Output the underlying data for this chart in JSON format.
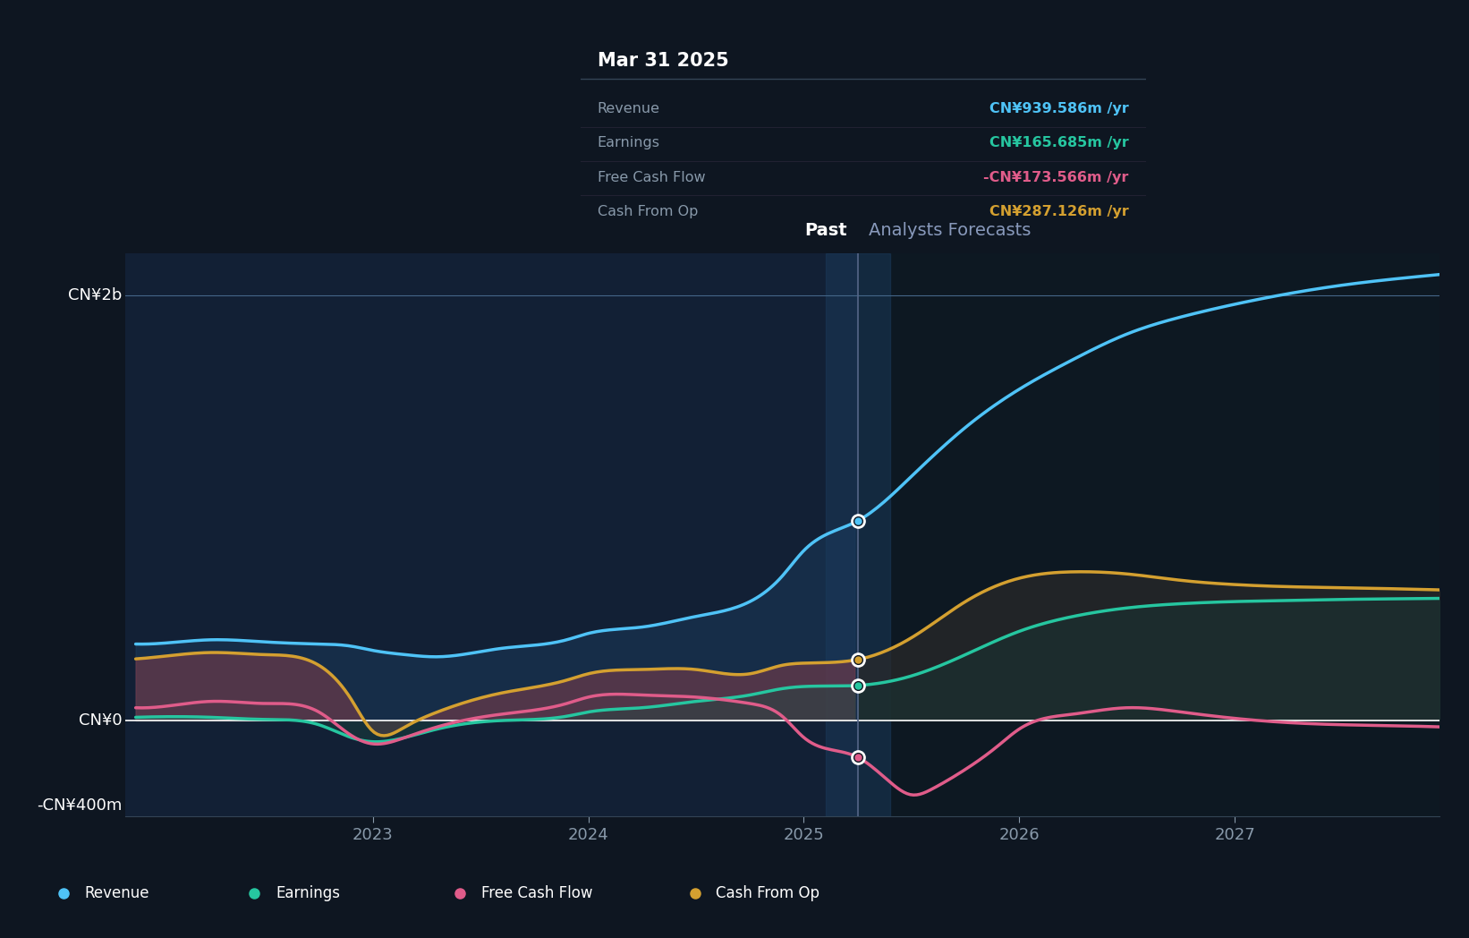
{
  "bg_color": "#0e1621",
  "plot_bg_color": "#0e1621",
  "ylabel_2b": "CN¥2b",
  "ylabel_0": "CN¥0",
  "ylabel_neg400m": "-CN¥400m",
  "past_label": "Past",
  "forecast_label": "Analysts Forecasts",
  "tooltip_date": "Mar 31 2025",
  "tooltip_items": [
    {
      "label": "Revenue",
      "value": "CN¥939.586m /yr",
      "color": "#4fc3f7"
    },
    {
      "label": "Earnings",
      "value": "CN¥165.685m /yr",
      "color": "#26c6a0"
    },
    {
      "label": "Free Cash Flow",
      "value": "-CN¥173.566m /yr",
      "color": "#e05c8a"
    },
    {
      "label": "Cash From Op",
      "value": "CN¥287.126m /yr",
      "color": "#d4a030"
    }
  ],
  "divider_x": 2025.25,
  "xlim": [
    2021.85,
    2027.95
  ],
  "ylim": [
    -450000000,
    2200000000
  ],
  "revenue_color": "#4fc3f7",
  "earnings_color": "#26c6a0",
  "fcf_color": "#e05c8a",
  "cashop_color": "#d4a030",
  "revenue_x": [
    2021.9,
    2022.1,
    2022.25,
    2022.5,
    2022.75,
    2022.9,
    2023.0,
    2023.15,
    2023.3,
    2023.6,
    2023.9,
    2024.0,
    2024.25,
    2024.5,
    2024.75,
    2024.9,
    2025.0,
    2025.25,
    2025.5,
    2025.75,
    2026.0,
    2026.25,
    2026.5,
    2026.75,
    2027.0,
    2027.25,
    2027.5,
    2027.75,
    2027.95
  ],
  "revenue_y": [
    360000000,
    370000000,
    380000000,
    370000000,
    360000000,
    350000000,
    330000000,
    310000000,
    300000000,
    340000000,
    380000000,
    410000000,
    440000000,
    490000000,
    560000000,
    680000000,
    800000000,
    940000000,
    1150000000,
    1380000000,
    1560000000,
    1700000000,
    1820000000,
    1900000000,
    1960000000,
    2010000000,
    2050000000,
    2080000000,
    2100000000
  ],
  "earnings_x": [
    2021.9,
    2022.1,
    2022.25,
    2022.5,
    2022.75,
    2022.9,
    2023.0,
    2023.15,
    2023.3,
    2023.6,
    2023.9,
    2024.0,
    2024.25,
    2024.5,
    2024.75,
    2024.9,
    2025.0,
    2025.25,
    2025.5,
    2025.75,
    2026.0,
    2026.25,
    2026.5,
    2026.75,
    2027.0,
    2027.25,
    2027.5,
    2027.75,
    2027.95
  ],
  "earnings_y": [
    15000000,
    18000000,
    15000000,
    5000000,
    -20000000,
    -80000000,
    -100000000,
    -80000000,
    -40000000,
    0,
    20000000,
    40000000,
    60000000,
    90000000,
    120000000,
    150000000,
    160000000,
    165000000,
    210000000,
    310000000,
    420000000,
    490000000,
    530000000,
    550000000,
    560000000,
    565000000,
    570000000,
    573000000,
    575000000
  ],
  "fcf_x": [
    2021.9,
    2022.1,
    2022.25,
    2022.5,
    2022.75,
    2022.9,
    2023.0,
    2023.15,
    2023.3,
    2023.6,
    2023.9,
    2024.0,
    2024.25,
    2024.5,
    2024.75,
    2024.9,
    2025.0,
    2025.25,
    2025.4,
    2025.5,
    2025.6,
    2025.75,
    2025.9,
    2026.0,
    2026.25,
    2026.5,
    2026.75,
    2027.0,
    2027.25,
    2027.5,
    2027.75,
    2027.95
  ],
  "fcf_y": [
    60000000,
    75000000,
    90000000,
    80000000,
    40000000,
    -70000000,
    -110000000,
    -80000000,
    -30000000,
    30000000,
    80000000,
    110000000,
    120000000,
    110000000,
    80000000,
    20000000,
    -80000000,
    -173000000,
    -290000000,
    -350000000,
    -320000000,
    -230000000,
    -120000000,
    -40000000,
    30000000,
    60000000,
    40000000,
    10000000,
    -10000000,
    -20000000,
    -25000000,
    -30000000
  ],
  "cashop_x": [
    2021.9,
    2022.1,
    2022.25,
    2022.5,
    2022.75,
    2022.9,
    2023.0,
    2023.15,
    2023.3,
    2023.6,
    2023.9,
    2024.0,
    2024.25,
    2024.5,
    2024.75,
    2024.9,
    2025.0,
    2025.25,
    2025.5,
    2025.75,
    2026.0,
    2026.25,
    2026.5,
    2026.75,
    2027.0,
    2027.25,
    2027.5,
    2027.75,
    2027.95
  ],
  "cashop_y": [
    290000000,
    310000000,
    320000000,
    310000000,
    260000000,
    100000000,
    -50000000,
    -30000000,
    40000000,
    130000000,
    190000000,
    220000000,
    240000000,
    240000000,
    220000000,
    260000000,
    270000000,
    287000000,
    390000000,
    560000000,
    670000000,
    700000000,
    690000000,
    660000000,
    640000000,
    630000000,
    625000000,
    620000000,
    615000000
  ],
  "legend_items": [
    {
      "label": "Revenue",
      "color": "#4fc3f7"
    },
    {
      "label": "Earnings",
      "color": "#26c6a0"
    },
    {
      "label": "Free Cash Flow",
      "color": "#e05c8a"
    },
    {
      "label": "Cash From Op",
      "color": "#d4a030"
    }
  ]
}
